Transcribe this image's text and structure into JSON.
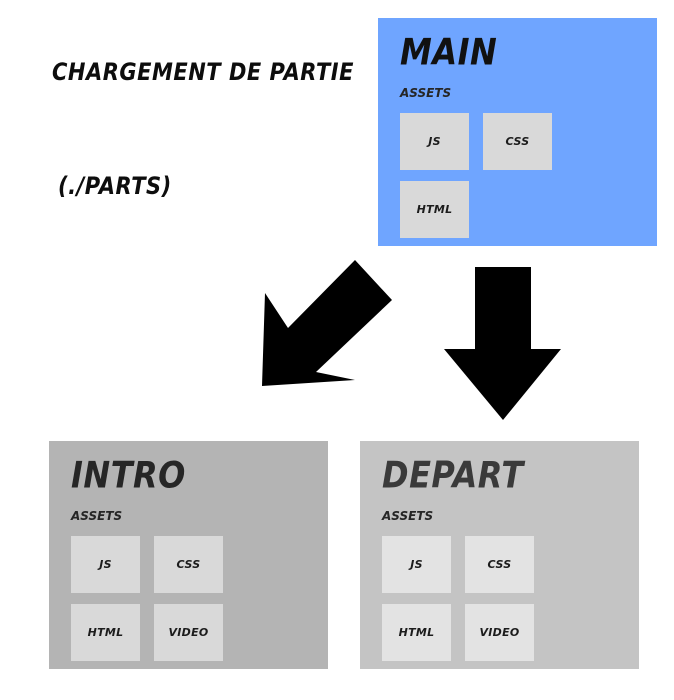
{
  "heading": "CHARGEMENT DE PARTIE",
  "subheading": "(./PARTS)",
  "panels": {
    "main": {
      "title": "MAIN",
      "subtitle": "ASSETS",
      "tiles": [
        "JS",
        "CSS",
        "HTML"
      ],
      "color": "#6fa5ff"
    },
    "intro": {
      "title": "INTRO",
      "subtitle": "ASSETS",
      "tiles": [
        "JS",
        "CSS",
        "HTML",
        "VIDEO"
      ],
      "color": "#b4b4b4"
    },
    "depart": {
      "title": "DEPART",
      "subtitle": "ASSETS",
      "tiles": [
        "JS",
        "CSS",
        "HTML",
        "VIDEO"
      ],
      "color": "#c4c4c4"
    }
  },
  "arrows": {
    "color": "#000000",
    "count": 2
  }
}
